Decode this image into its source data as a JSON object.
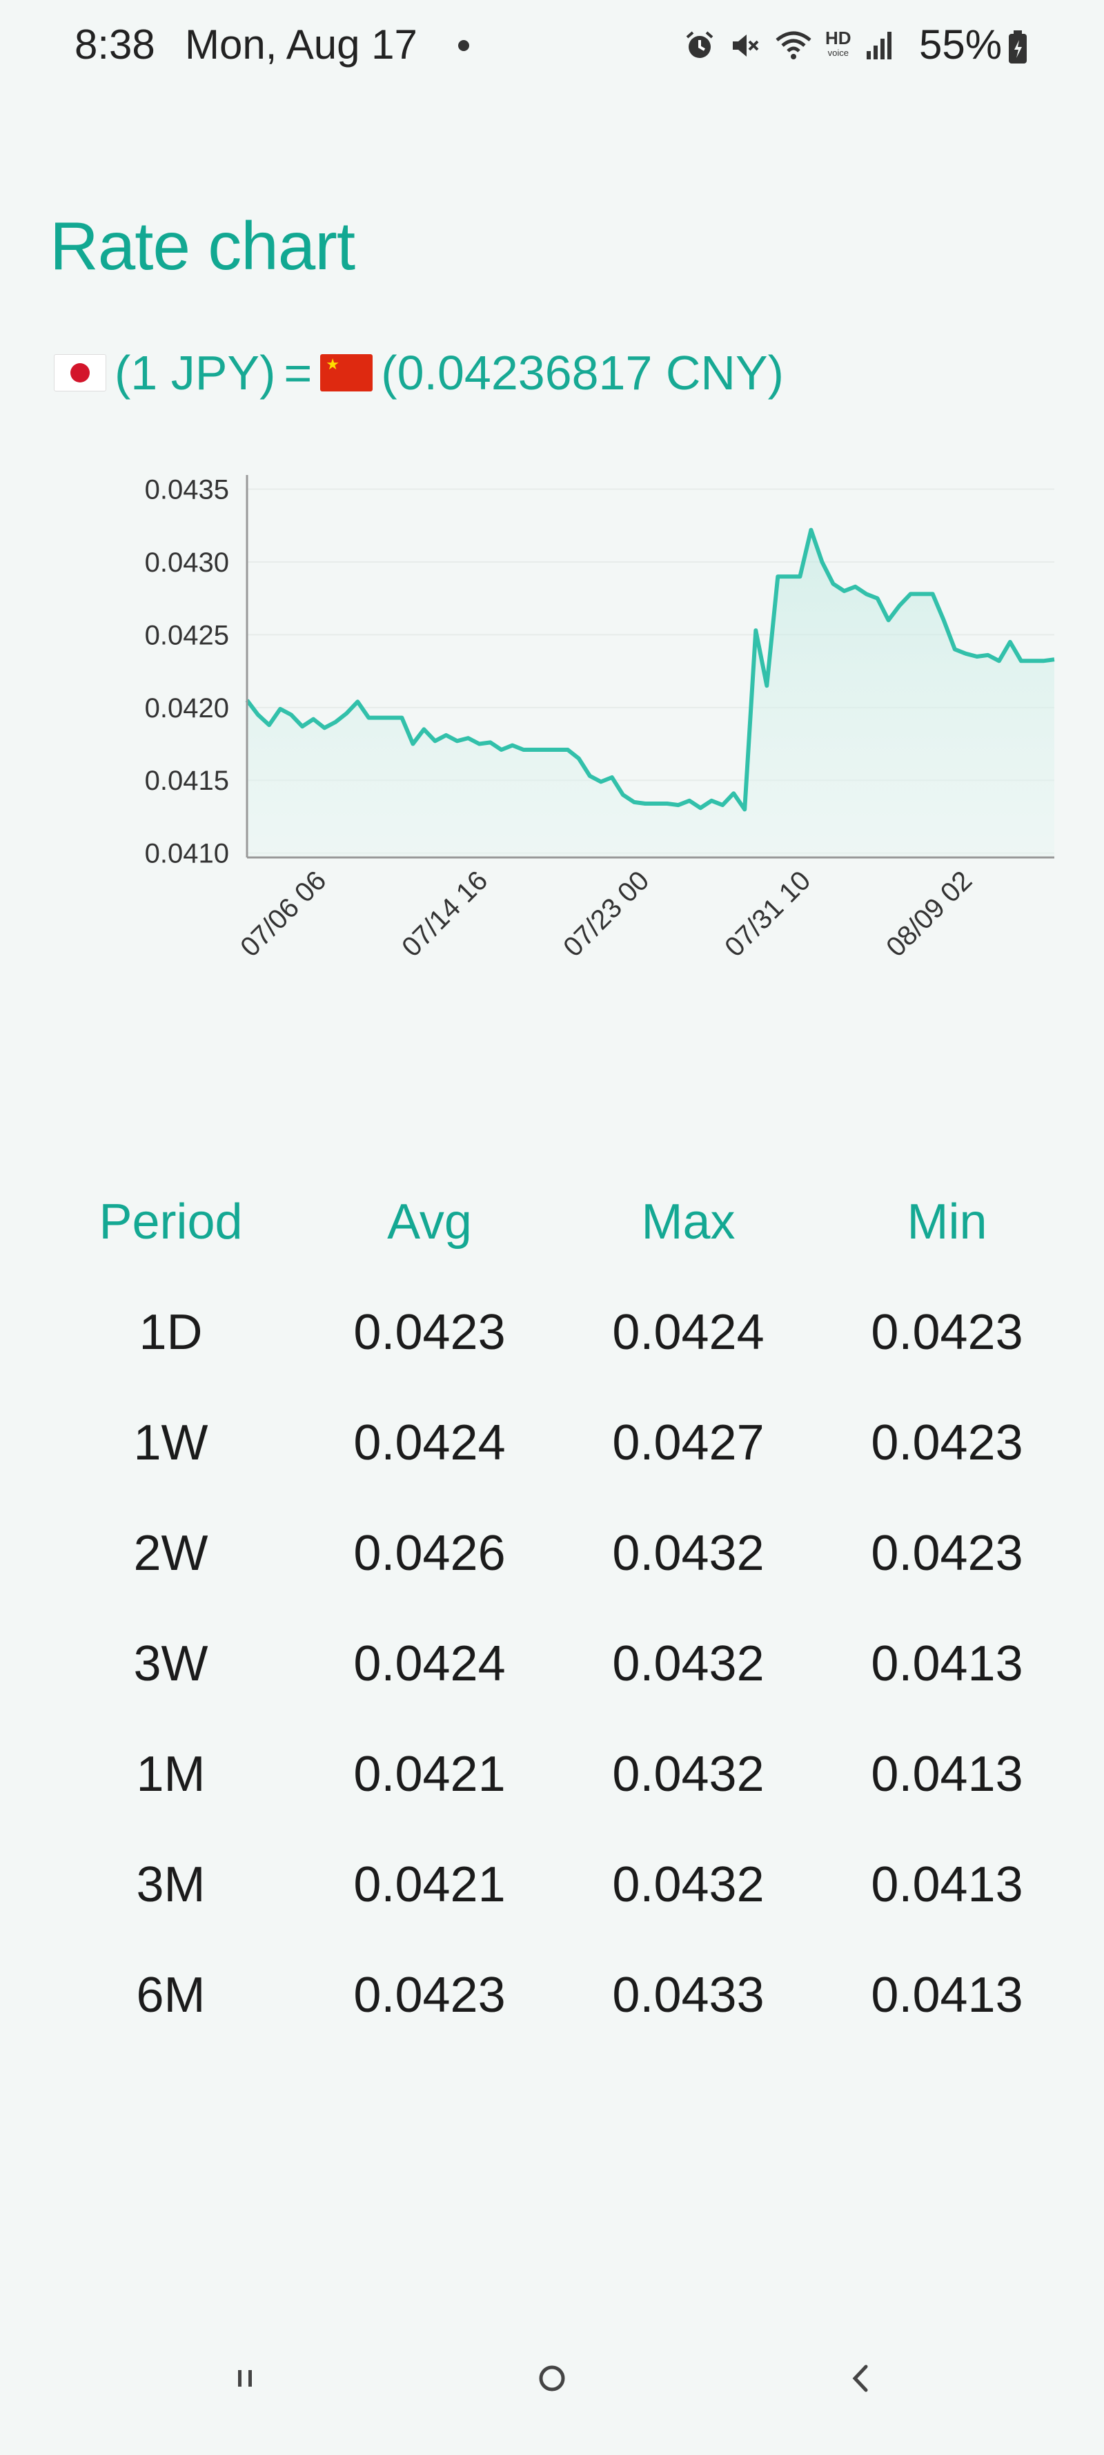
{
  "status_bar": {
    "time": "8:38",
    "date": "Mon, Aug 17",
    "battery_percent": "55%",
    "hd_label": "HD",
    "hd_sub": "voice"
  },
  "page": {
    "title": "Rate chart",
    "rate": {
      "base_flag": "japan-flag-icon",
      "base": "(1 JPY)",
      "equals": "=",
      "quote_flag": "china-flag-icon",
      "quote": "(0.04236817 CNY)"
    }
  },
  "colors": {
    "accent": "#14a893",
    "line": "#32c0aa",
    "fill": "#d6f1ec",
    "background": "#f3f7f6"
  },
  "chart_data": {
    "type": "area",
    "title": "",
    "xlabel": "",
    "ylabel": "",
    "ylim": [
      0.04097,
      0.04355
    ],
    "yticks": [
      "0.0435",
      "0.0430",
      "0.0425",
      "0.0420",
      "0.0415",
      "0.0410"
    ],
    "yticks_values": [
      0.0435,
      0.043,
      0.0425,
      0.042,
      0.0415,
      0.041
    ],
    "xticks": [
      "07/06 06",
      "07/14 16",
      "07/23 00",
      "07/31 10",
      "08/09 02"
    ],
    "grid": true,
    "series": [
      {
        "values": [
          0.04205,
          0.04195,
          0.04188,
          0.04199,
          0.04195,
          0.04187,
          0.04192,
          0.04186,
          0.0419,
          0.04196,
          0.04204,
          0.04193,
          0.04193,
          0.04193,
          0.04193,
          0.04175,
          0.04185,
          0.04177,
          0.04181,
          0.04177,
          0.04179,
          0.04175,
          0.04176,
          0.04171,
          0.04174,
          0.04171,
          0.04171,
          0.04171,
          0.04171,
          0.04171,
          0.04165,
          0.04153,
          0.04149,
          0.04152,
          0.0414,
          0.04135,
          0.04134,
          0.04134,
          0.04134,
          0.04133,
          0.04136,
          0.04131,
          0.04136,
          0.04133,
          0.04141,
          0.0413,
          0.04253,
          0.04215,
          0.0429,
          0.0429,
          0.0429,
          0.04322,
          0.043,
          0.04285,
          0.0428,
          0.04283,
          0.04278,
          0.04275,
          0.0426,
          0.0427,
          0.04278,
          0.04278,
          0.04278,
          0.0426,
          0.0424,
          0.04237,
          0.04235,
          0.04236,
          0.04232,
          0.04245,
          0.04232,
          0.04232,
          0.04232,
          0.04233
        ]
      }
    ]
  },
  "table": {
    "headers": [
      "Period",
      "Avg",
      "Max",
      "Min"
    ],
    "rows": [
      [
        "1D",
        "0.0423",
        "0.0424",
        "0.0423"
      ],
      [
        "1W",
        "0.0424",
        "0.0427",
        "0.0423"
      ],
      [
        "2W",
        "0.0426",
        "0.0432",
        "0.0423"
      ],
      [
        "3W",
        "0.0424",
        "0.0432",
        "0.0413"
      ],
      [
        "1M",
        "0.0421",
        "0.0432",
        "0.0413"
      ],
      [
        "3M",
        "0.0421",
        "0.0432",
        "0.0413"
      ],
      [
        "6M",
        "0.0423",
        "0.0433",
        "0.0413"
      ]
    ]
  },
  "nav": {
    "recents": "recents-icon",
    "home": "home-icon",
    "back": "back-icon"
  }
}
